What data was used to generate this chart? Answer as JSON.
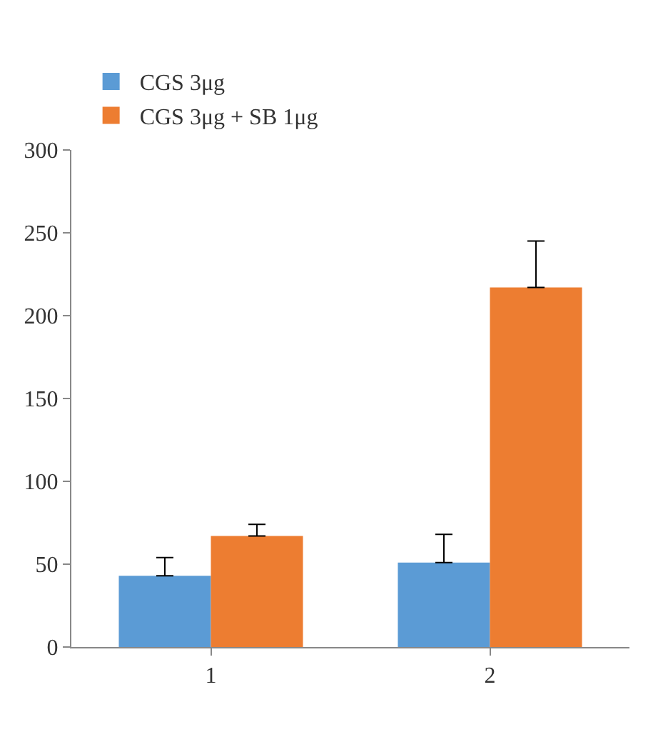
{
  "chart_data": {
    "type": "bar",
    "categories": [
      "1",
      "2"
    ],
    "series": [
      {
        "name": "CGS 3μg",
        "color": "#5b9bd5",
        "values": [
          43,
          51
        ],
        "errors": [
          [
            43,
            54
          ],
          [
            51,
            68
          ]
        ]
      },
      {
        "name": "CGS 3μg + SB 1μg",
        "color": "#ed7d31",
        "values": [
          67,
          217
        ],
        "errors": [
          [
            67,
            74
          ],
          [
            217,
            245
          ]
        ]
      }
    ],
    "ylim": [
      0,
      300
    ],
    "yticks": [
      0,
      50,
      100,
      150,
      200,
      250,
      300
    ],
    "legend": "top left"
  }
}
